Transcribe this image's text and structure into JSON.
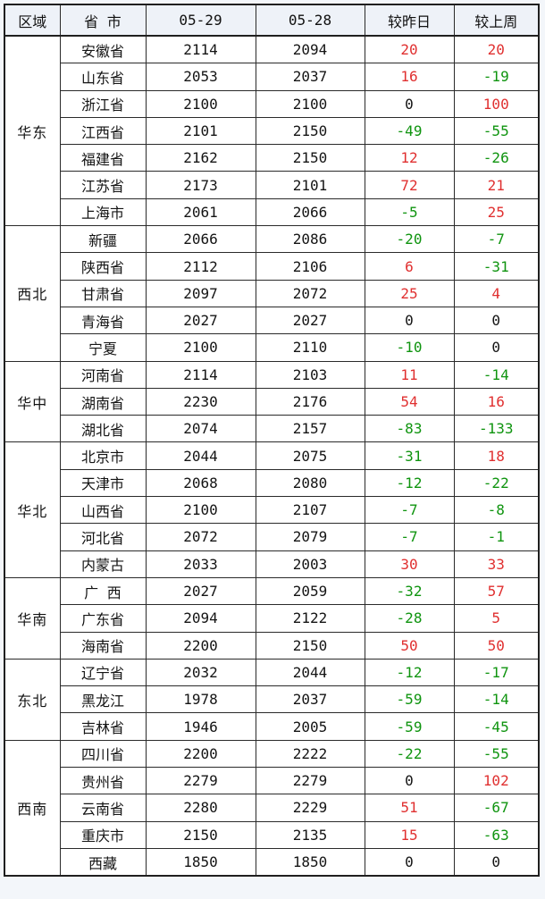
{
  "chart_data": {
    "type": "table",
    "columns": [
      "区域",
      "省 市",
      "05-29",
      "05-28",
      "较昨日",
      "较上周"
    ],
    "regions": [
      {
        "name": "华东",
        "rows": [
          {
            "province": "安徽省",
            "price_0529": "2114",
            "price_0528": "2094",
            "chg_day": 20,
            "chg_week": 20
          },
          {
            "province": "山东省",
            "price_0529": "2053",
            "price_0528": "2037",
            "chg_day": 16,
            "chg_week": -19
          },
          {
            "province": "浙江省",
            "price_0529": "2100",
            "price_0528": "2100",
            "chg_day": 0,
            "chg_week": 100
          },
          {
            "province": "江西省",
            "price_0529": "2101",
            "price_0528": "2150",
            "chg_day": -49,
            "chg_week": -55
          },
          {
            "province": "福建省",
            "price_0529": "2162",
            "price_0528": "2150",
            "chg_day": 12,
            "chg_week": -26
          },
          {
            "province": "江苏省",
            "price_0529": "2173",
            "price_0528": "2101",
            "chg_day": 72,
            "chg_week": 21
          },
          {
            "province": "上海市",
            "price_0529": "2061",
            "price_0528": "2066",
            "chg_day": -5,
            "chg_week": 25
          }
        ]
      },
      {
        "name": "西北",
        "rows": [
          {
            "province": "新疆",
            "price_0529": "2066",
            "price_0528": "2086",
            "chg_day": -20,
            "chg_week": -7
          },
          {
            "province": "陕西省",
            "price_0529": "2112",
            "price_0528": "2106",
            "chg_day": 6,
            "chg_week": -31
          },
          {
            "province": "甘肃省",
            "price_0529": "2097",
            "price_0528": "2072",
            "chg_day": 25,
            "chg_week": 4
          },
          {
            "province": "青海省",
            "price_0529": "2027",
            "price_0528": "2027",
            "chg_day": 0,
            "chg_week": 0
          },
          {
            "province": "宁夏",
            "price_0529": "2100",
            "price_0528": "2110",
            "chg_day": -10,
            "chg_week": 0
          }
        ]
      },
      {
        "name": "华中",
        "rows": [
          {
            "province": "河南省",
            "price_0529": "2114",
            "price_0528": "2103",
            "chg_day": 11,
            "chg_week": -14
          },
          {
            "province": "湖南省",
            "price_0529": "2230",
            "price_0528": "2176",
            "chg_day": 54,
            "chg_week": 16
          },
          {
            "province": "湖北省",
            "price_0529": "2074",
            "price_0528": "2157",
            "chg_day": -83,
            "chg_week": -133
          }
        ]
      },
      {
        "name": "华北",
        "rows": [
          {
            "province": "北京市",
            "price_0529": "2044",
            "price_0528": "2075",
            "chg_day": -31,
            "chg_week": 18
          },
          {
            "province": "天津市",
            "price_0529": "2068",
            "price_0528": "2080",
            "chg_day": -12,
            "chg_week": -22
          },
          {
            "province": "山西省",
            "price_0529": "2100",
            "price_0528": "2107",
            "chg_day": -7,
            "chg_week": -8
          },
          {
            "province": "河北省",
            "price_0529": "2072",
            "price_0528": "2079",
            "chg_day": -7,
            "chg_week": -1
          },
          {
            "province": "内蒙古",
            "price_0529": "2033",
            "price_0528": "2003",
            "chg_day": 30,
            "chg_week": 33
          }
        ]
      },
      {
        "name": "华南",
        "rows": [
          {
            "province": "广 西",
            "price_0529": "2027",
            "price_0528": "2059",
            "chg_day": -32,
            "chg_week": 57
          },
          {
            "province": "广东省",
            "price_0529": "2094",
            "price_0528": "2122",
            "chg_day": -28,
            "chg_week": 5
          },
          {
            "province": "海南省",
            "price_0529": "2200",
            "price_0528": "2150",
            "chg_day": 50,
            "chg_week": 50
          }
        ]
      },
      {
        "name": "东北",
        "rows": [
          {
            "province": "辽宁省",
            "price_0529": "2032",
            "price_0528": "2044",
            "chg_day": -12,
            "chg_week": -17
          },
          {
            "province": "黑龙江",
            "price_0529": "1978",
            "price_0528": "2037",
            "chg_day": -59,
            "chg_week": -14
          },
          {
            "province": "吉林省",
            "price_0529": "1946",
            "price_0528": "2005",
            "chg_day": -59,
            "chg_week": -45
          }
        ]
      },
      {
        "name": "西南",
        "rows": [
          {
            "province": "四川省",
            "price_0529": "2200",
            "price_0528": "2222",
            "chg_day": -22,
            "chg_week": -55
          },
          {
            "province": "贵州省",
            "price_0529": "2279",
            "price_0528": "2279",
            "chg_day": 0,
            "chg_week": 102
          },
          {
            "province": "云南省",
            "price_0529": "2280",
            "price_0528": "2229",
            "chg_day": 51,
            "chg_week": -67
          },
          {
            "province": "重庆市",
            "price_0529": "2150",
            "price_0528": "2135",
            "chg_day": 15,
            "chg_week": -63
          },
          {
            "province": "西藏",
            "price_0529": "1850",
            "price_0528": "1850",
            "chg_day": 0,
            "chg_week": 0
          }
        ]
      }
    ]
  },
  "colors": {
    "positive": "#e03030",
    "negative": "#0f940f",
    "zero": "#141414",
    "header_bg": "#eef2f8",
    "border": "#2a2a2a",
    "page_bg": "#f3f6fa"
  }
}
